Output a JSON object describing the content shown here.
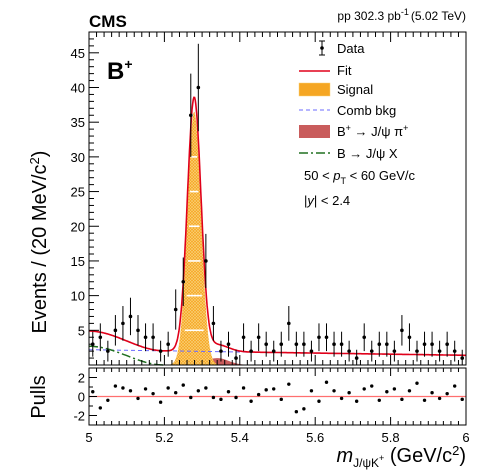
{
  "header": {
    "experiment": "CMS",
    "lumi_prefix": "pp 302.3 pb",
    "lumi_exponent": "-1",
    "lumi_suffix": "(5.02 TeV)",
    "particle": "B",
    "particle_charge": "+"
  },
  "colors": {
    "fit": "#e0001a",
    "signal_fill": "#f5a623",
    "signal_hatch": "#fbd27a",
    "signal_band": "#ffffff",
    "comb_bkg": "#6b6bff",
    "b_to_jpsi_pi": "#c95c5c",
    "b_to_jpsi_x": "#207020",
    "pull_line": "#ff6f6f"
  },
  "legend": {
    "items": [
      {
        "label": "Data",
        "icon": "data-point-icon"
      },
      {
        "label": "Fit",
        "icon": "red-line-icon"
      },
      {
        "label": "Signal",
        "icon": "orange-fill-icon"
      },
      {
        "label": "Comb bkg",
        "icon": "blue-dash-icon"
      },
      {
        "label_main": "B",
        "label_sup": "+",
        "label_rest": " → J/ψ π",
        "label_sup2": "+",
        "icon": "red-fill-icon"
      },
      {
        "label": "B → J/ψ X",
        "icon": "green-dash-icon"
      }
    ],
    "cut_pt": {
      "prefix": "50 < ",
      "var": "p",
      "sub": "T",
      "suffix": " < 60 GeV/c"
    },
    "cut_y": {
      "prefix": "|",
      "var": "y",
      "suffix": "| < 2.4"
    }
  },
  "axes": {
    "ylabel_main": "Events / (20 MeV/c",
    "ylabel_sup": "2",
    "ylabel_end": ")",
    "pulls_label": "Pulls",
    "xlabel_var": "m",
    "xlabel_sub": "J/ψK",
    "xlabel_sub_sup": "+",
    "xlabel_unit": " (GeV/c",
    "xlabel_unit_sup": "2",
    "xlabel_end": ")"
  },
  "chart_data": [
    {
      "type": "scatter",
      "panel": "main",
      "x_range": [
        5.0,
        6.0
      ],
      "y_range": [
        0,
        48
      ],
      "x_ticks": [
        5,
        5.2,
        5.4,
        5.6,
        5.8,
        6
      ],
      "y_ticks": [
        5,
        10,
        15,
        20,
        25,
        30,
        35,
        40,
        45
      ],
      "data": {
        "name": "Data",
        "x": [
          5.01,
          5.03,
          5.05,
          5.07,
          5.09,
          5.11,
          5.13,
          5.15,
          5.17,
          5.19,
          5.21,
          5.23,
          5.25,
          5.27,
          5.29,
          5.31,
          5.33,
          5.35,
          5.37,
          5.39,
          5.41,
          5.43,
          5.45,
          5.47,
          5.49,
          5.51,
          5.53,
          5.55,
          5.57,
          5.59,
          5.61,
          5.63,
          5.65,
          5.67,
          5.69,
          5.71,
          5.73,
          5.75,
          5.77,
          5.79,
          5.81,
          5.83,
          5.85,
          5.87,
          5.89,
          5.91,
          5.93,
          5.95,
          5.97,
          5.99
        ],
        "y": [
          3,
          4,
          2,
          5,
          6,
          7,
          5,
          4,
          4,
          2,
          3,
          8,
          12,
          36,
          40,
          15,
          6,
          2,
          3,
          1,
          4,
          2,
          4,
          3,
          2,
          3,
          6,
          3,
          3,
          2,
          4,
          4,
          3,
          3,
          2,
          1,
          4,
          2,
          3,
          3,
          2,
          5,
          4,
          2,
          3,
          3,
          2,
          3,
          2,
          1
        ],
        "err": [
          1.8,
          2.0,
          1.5,
          2.2,
          2.5,
          2.7,
          2.2,
          2.0,
          2.0,
          1.5,
          1.8,
          2.9,
          3.5,
          6.0,
          6.3,
          3.9,
          2.5,
          1.5,
          1.8,
          1.2,
          2.0,
          1.5,
          2.0,
          1.8,
          1.5,
          1.8,
          2.5,
          1.8,
          1.8,
          1.5,
          2.0,
          2.0,
          1.8,
          1.8,
          1.5,
          1.2,
          2.0,
          1.5,
          1.8,
          1.8,
          1.5,
          2.2,
          2.0,
          1.5,
          1.8,
          1.8,
          1.5,
          1.8,
          1.5,
          1.2
        ]
      },
      "components": {
        "signal": {
          "mean": 5.279,
          "sigma": 0.018,
          "peak": 36.5
        },
        "comb_bkg": {
          "start": 2.2,
          "end": 1.4
        },
        "jpsi_x": {
          "amplitude": 2.7,
          "x_end": 5.2
        },
        "jpsi_pi": {
          "peak": 1.0,
          "mean": 5.34,
          "sigma": 0.03
        }
      }
    },
    {
      "type": "scatter",
      "panel": "pulls",
      "x_range": [
        5.0,
        6.0
      ],
      "y_range": [
        -3,
        3
      ],
      "y_ticks": [
        -2,
        0,
        2
      ],
      "x": [
        5.01,
        5.03,
        5.05,
        5.07,
        5.09,
        5.11,
        5.13,
        5.15,
        5.17,
        5.19,
        5.21,
        5.23,
        5.25,
        5.27,
        5.29,
        5.31,
        5.33,
        5.35,
        5.37,
        5.39,
        5.41,
        5.43,
        5.45,
        5.47,
        5.49,
        5.51,
        5.53,
        5.55,
        5.57,
        5.59,
        5.61,
        5.63,
        5.65,
        5.67,
        5.69,
        5.71,
        5.73,
        5.75,
        5.77,
        5.79,
        5.81,
        5.83,
        5.85,
        5.87,
        5.89,
        5.91,
        5.93,
        5.95,
        5.97,
        5.99
      ],
      "pulls": [
        0.5,
        -1.2,
        -0.4,
        1.1,
        0.9,
        0.6,
        -0.2,
        0.8,
        0.3,
        -0.6,
        0.9,
        0.4,
        1.2,
        -0.1,
        0.6,
        0.9,
        -0.1,
        -0.3,
        0.5,
        -0.1,
        0.9,
        -0.5,
        0.2,
        0.7,
        0.8,
        -0.3,
        1.3,
        -1.6,
        -1.3,
        0.6,
        -0.5,
        1.5,
        0.6,
        -0.2,
        0.4,
        -0.5,
        0.8,
        1.1,
        -0.4,
        0.5,
        0.8,
        -0.3,
        0.6,
        1.4,
        -0.4,
        0.4,
        -0.2,
        0.3,
        1.1,
        -0.3
      ],
      "y0_line": 0
    }
  ]
}
